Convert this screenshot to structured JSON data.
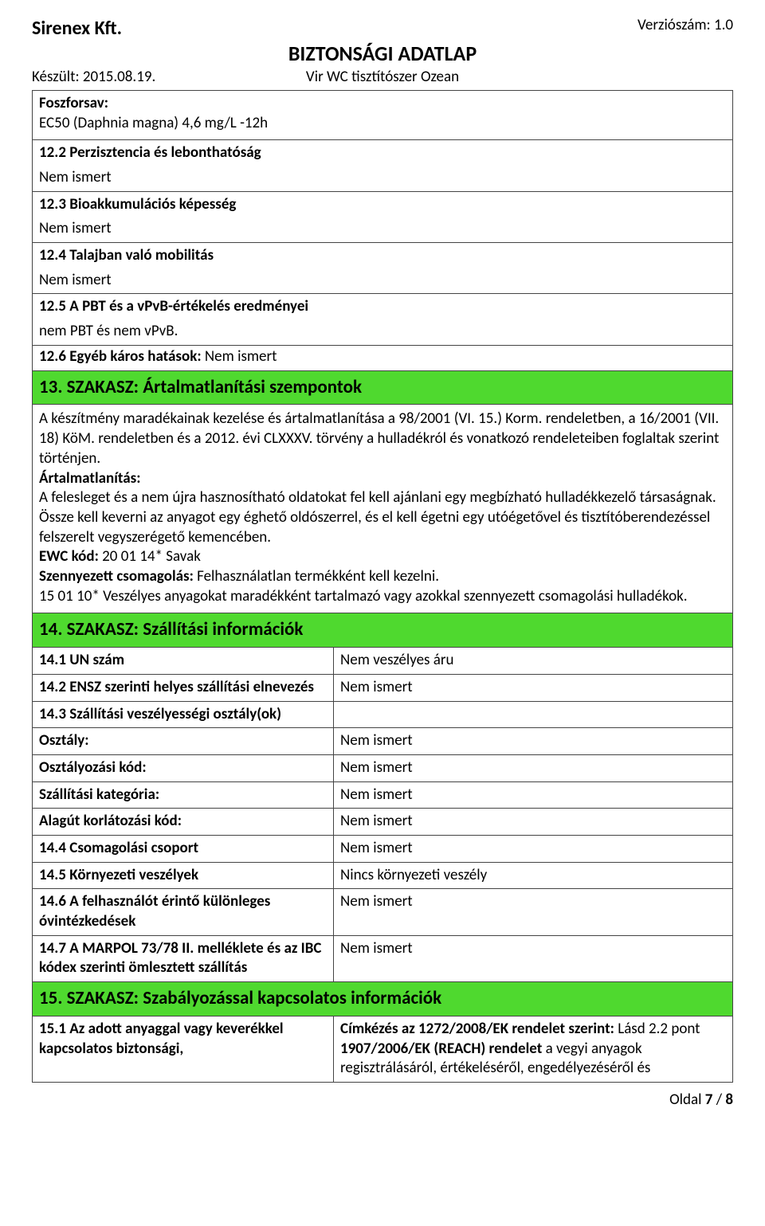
{
  "header": {
    "company": "Sirenex Kft.",
    "version": "Verziószám: 1.0",
    "doc_title": "BIZTONSÁGI ADATLAP",
    "created": "Készült: 2015.08.19.",
    "subtitle": "Vir WC tisztítószer Ozean"
  },
  "intro": {
    "label": "Foszforsav:",
    "line": "EC50 (Daphnia magna) 4,6 mg/L -12h"
  },
  "sections": [
    {
      "heading": "12.2 Perzisztencia és lebonthatóság",
      "body": "Nem ismert"
    },
    {
      "heading": "12.3 Bioakkumulációs képesség",
      "body": "Nem ismert"
    },
    {
      "heading": "12.4 Talajban való mobilitás",
      "body": "Nem ismert"
    },
    {
      "heading": "12.5 A PBT és a vPvB-értékelés eredményei",
      "body": "nem PBT és nem vPvB."
    }
  ],
  "section_126": {
    "heading": "12.6 Egyéb káros hatások:",
    "body_suffix": " Nem ismert"
  },
  "green13": "13. SZAKASZ: Ártalmatlanítási szempontok",
  "text13": {
    "p1": "A készítmény maradékainak kezelése és ártalmatlanítása a 98/2001 (VI. 15.) Korm. rendeletben, a 16/2001 (VII. 18) KöM. rendeletben és a 2012. évi CLXXXV. törvény a hulladékról és vonatkozó rendeleteiben foglaltak szerint történjen.",
    "artalm_label": "Ártalmatlanítás:",
    "artalm_body": "A felesleget és a nem újra hasznosítható oldatokat fel kell ajánlani egy megbízható hulladékkezelő társaságnak. Össze kell keverni az anyagot egy éghető oldószerrel, és el kell égetni egy utóégetővel és tisztítóberendezéssel felszerelt vegyszerégető kemencében.",
    "ewc_label": "EWC kód:",
    "ewc_body": " 20 01 14* Savak",
    "szenny_label": "Szennyezett csomagolás:",
    "szenny_body": " Felhasználatlan termékként kell kezelni.",
    "szenny_line2": "15 01 10* Veszélyes anyagokat maradékként tartalmazó vagy azokkal szennyezett csomagolási hulladékok."
  },
  "green14": "14. SZAKASZ: Szállítási információk",
  "table14": [
    {
      "l": "14.1 UN szám",
      "r": "Nem veszélyes áru"
    },
    {
      "l": "14.2 ENSZ szerinti helyes szállítási elnevezés",
      "r": "Nem ismert"
    },
    {
      "l": "14.3 Szállítási veszélyességi osztály(ok)",
      "r": ""
    },
    {
      "l": "Osztály:",
      "r": "Nem ismert"
    },
    {
      "l": "Osztályozási kód:",
      "r": "Nem ismert"
    },
    {
      "l": "Szállítási kategória:",
      "r": "Nem ismert"
    },
    {
      "l": "Alagút korlátozási kód:",
      "r": "Nem ismert"
    },
    {
      "l": "14.4 Csomagolási csoport",
      "r": "Nem ismert"
    },
    {
      "l": "14.5 Környezeti veszélyek",
      "r": "Nincs környezeti veszély"
    },
    {
      "l": "14.6 A felhasználót érintő különleges óvintézkedések",
      "r": "Nem ismert"
    },
    {
      "l": "14.7 A MARPOL 73/78 II. melléklete és az IBC kódex szerinti ömlesztett szállítás",
      "r": "Nem ismert"
    }
  ],
  "green15": "15. SZAKASZ: Szabályozással kapcsolatos információk",
  "row15": {
    "left": "15.1 Az adott anyaggal vagy keverékkel kapcsolatos biztonsági,",
    "r_b1": "Címkézés az 1272/2008/EK rendelet szerint:",
    "r_t1": " Lásd 2.2 pont ",
    "r_b2": "1907/2006/EK (REACH) rendelet",
    "r_t2": " a vegyi anyagok regisztrálásáról, értékeléséről, engedélyezéséről és"
  },
  "footer": {
    "prefix": "Oldal ",
    "page": "7",
    "sep": " / ",
    "total": "8"
  }
}
